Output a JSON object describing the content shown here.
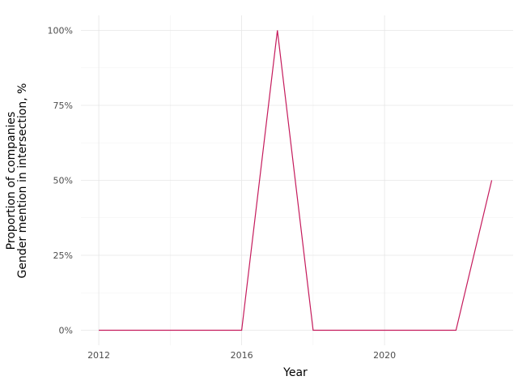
{
  "chart_data": {
    "type": "line",
    "xlabel": "Year",
    "ylabel_lines": [
      "Proportion of companies",
      "Gender mention in intersection, %"
    ],
    "x_ticks": [
      2012,
      2016,
      2020
    ],
    "y_ticks": [
      0,
      0.25,
      0.5,
      0.75,
      1.0
    ],
    "y_tick_labels": [
      "0%",
      "25%",
      "50%",
      "75%",
      "100%"
    ],
    "xlim": [
      2011.5,
      2023.6
    ],
    "ylim": [
      -0.05,
      1.05
    ],
    "grid": true,
    "series": [
      {
        "color": "#c51b5c",
        "x": [
          2012,
          2013,
          2014,
          2015,
          2016,
          2017,
          2018,
          2019,
          2020,
          2021,
          2022,
          2023
        ],
        "y": [
          0,
          0,
          0,
          0,
          0,
          1.0,
          0,
          0,
          0,
          0,
          0,
          0.5
        ]
      }
    ]
  }
}
